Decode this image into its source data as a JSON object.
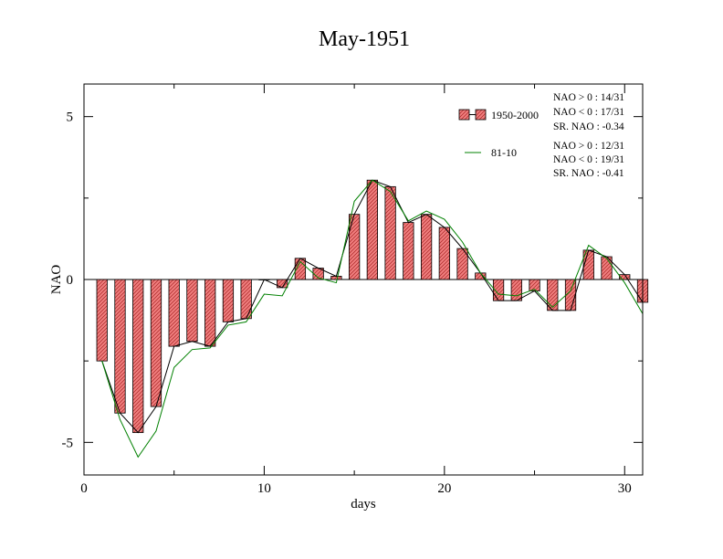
{
  "chart_data": {
    "type": "bar",
    "title": "May-1951",
    "xlabel": "days",
    "ylabel": "NAO",
    "xlim": [
      0,
      31
    ],
    "ylim": [
      -6,
      6
    ],
    "x_ticks": [
      0,
      10,
      20,
      30
    ],
    "y_ticks": [
      -5,
      0,
      5
    ],
    "x": [
      1,
      2,
      3,
      4,
      5,
      6,
      7,
      8,
      9,
      10,
      11,
      12,
      13,
      14,
      15,
      16,
      17,
      18,
      19,
      20,
      21,
      22,
      23,
      24,
      25,
      26,
      27,
      28,
      29,
      30,
      31
    ],
    "series": [
      {
        "name": "1950-2000",
        "style": "bars",
        "color": "#f08080",
        "hatch_color": "#c0392b",
        "values": [
          -2.5,
          -4.1,
          -4.7,
          -3.9,
          -2.05,
          -1.9,
          -2.05,
          -1.3,
          -1.2,
          0.0,
          -0.25,
          0.65,
          0.35,
          0.1,
          2.0,
          3.05,
          2.85,
          1.75,
          2.0,
          1.6,
          0.95,
          0.2,
          -0.65,
          -0.65,
          -0.35,
          -0.95,
          -0.95,
          0.9,
          0.7,
          0.15,
          -0.7
        ]
      },
      {
        "name": "1950-2000 line",
        "style": "line",
        "color": "#000000",
        "values": [
          -2.5,
          -4.1,
          -4.7,
          -3.9,
          -2.05,
          -1.9,
          -2.05,
          -1.3,
          -1.2,
          0.0,
          -0.25,
          0.65,
          0.35,
          0.1,
          2.0,
          3.05,
          2.85,
          1.75,
          2.0,
          1.6,
          0.95,
          0.2,
          -0.65,
          -0.65,
          -0.35,
          -0.95,
          -0.95,
          0.9,
          0.7,
          0.15,
          -0.7
        ]
      },
      {
        "name": "81-10",
        "style": "line",
        "color": "#008000",
        "values": [
          -2.5,
          -4.3,
          -5.45,
          -4.65,
          -2.7,
          -2.15,
          -2.1,
          -1.4,
          -1.3,
          -0.45,
          -0.5,
          0.55,
          0.05,
          -0.1,
          2.4,
          3.05,
          2.7,
          1.8,
          2.1,
          1.85,
          1.15,
          0.2,
          -0.45,
          -0.5,
          -0.3,
          -0.85,
          -0.35,
          1.05,
          0.65,
          -0.1,
          -1.05
        ]
      }
    ],
    "legend": {
      "placement": "top-right",
      "entries": [
        {
          "label": "1950-2000",
          "type": "hatched-bar"
        },
        {
          "label": "81-10",
          "type": "green-line"
        }
      ]
    },
    "stats": [
      [
        "NAO > 0 : 14/31",
        "NAO < 0 : 17/31",
        "SR. NAO : -0.34"
      ],
      [
        "NAO > 0 : 12/31",
        "NAO < 0 : 19/31",
        "SR. NAO : -0.41"
      ]
    ],
    "grid": false
  }
}
